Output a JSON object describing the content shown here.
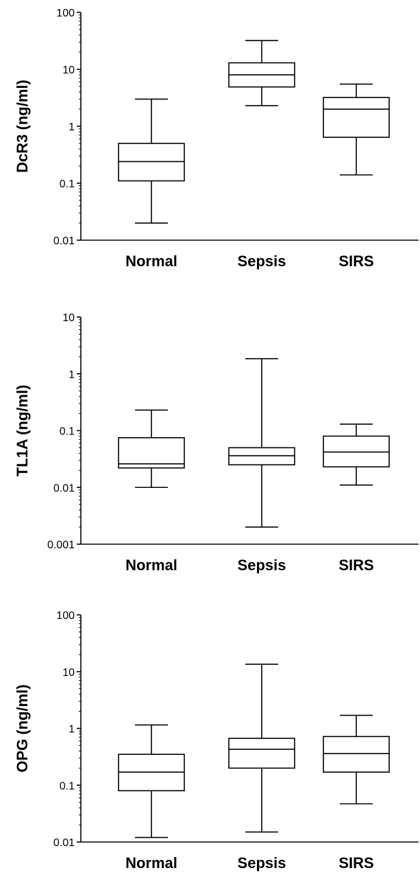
{
  "chart_data": [
    {
      "type": "box",
      "ylabel": "DcR3 (ng/ml)",
      "yscale": "log",
      "ylim": [
        0.01,
        100
      ],
      "yticks": [
        0.01,
        0.1,
        1,
        10,
        100
      ],
      "ytick_labels": [
        "0.01",
        "0.1",
        "1",
        "10",
        "100"
      ],
      "categories": [
        "Normal",
        "Sepsis",
        "SIRS"
      ],
      "boxes": [
        {
          "min": 0.02,
          "q1": 0.11,
          "median": 0.24,
          "q3": 0.5,
          "max": 3.0
        },
        {
          "min": 2.3,
          "q1": 4.9,
          "median": 8.0,
          "q3": 13.0,
          "max": 32.0
        },
        {
          "min": 0.14,
          "q1": 0.64,
          "median": 2.0,
          "q3": 3.2,
          "max": 5.5
        }
      ]
    },
    {
      "type": "box",
      "ylabel": "TL1A (ng/ml)",
      "yscale": "log",
      "ylim": [
        0.001,
        10
      ],
      "yticks": [
        0.001,
        0.01,
        0.1,
        1,
        10
      ],
      "ytick_labels": [
        "0.001",
        "0.01",
        "0.1",
        "1",
        "10"
      ],
      "categories": [
        "Normal",
        "Sepsis",
        "SIRS"
      ],
      "boxes": [
        {
          "min": 0.01,
          "q1": 0.022,
          "median": 0.026,
          "q3": 0.075,
          "max": 0.23
        },
        {
          "min": 0.002,
          "q1": 0.025,
          "median": 0.036,
          "q3": 0.05,
          "max": 1.85
        },
        {
          "min": 0.011,
          "q1": 0.023,
          "median": 0.042,
          "q3": 0.08,
          "max": 0.13
        }
      ]
    },
    {
      "type": "box",
      "ylabel": "OPG (ng/ml)",
      "yscale": "log",
      "ylim": [
        0.01,
        100
      ],
      "yticks": [
        0.01,
        0.1,
        1,
        10,
        100
      ],
      "ytick_labels": [
        "0.01",
        "0.1",
        "1",
        "10",
        "100"
      ],
      "categories": [
        "Normal",
        "Sepsis",
        "SIRS"
      ],
      "boxes": [
        {
          "min": 0.012,
          "q1": 0.08,
          "median": 0.17,
          "q3": 0.35,
          "max": 1.15
        },
        {
          "min": 0.015,
          "q1": 0.2,
          "median": 0.43,
          "q3": 0.67,
          "max": 13.5
        },
        {
          "min": 0.047,
          "q1": 0.17,
          "median": 0.36,
          "q3": 0.72,
          "max": 1.7
        }
      ]
    }
  ]
}
